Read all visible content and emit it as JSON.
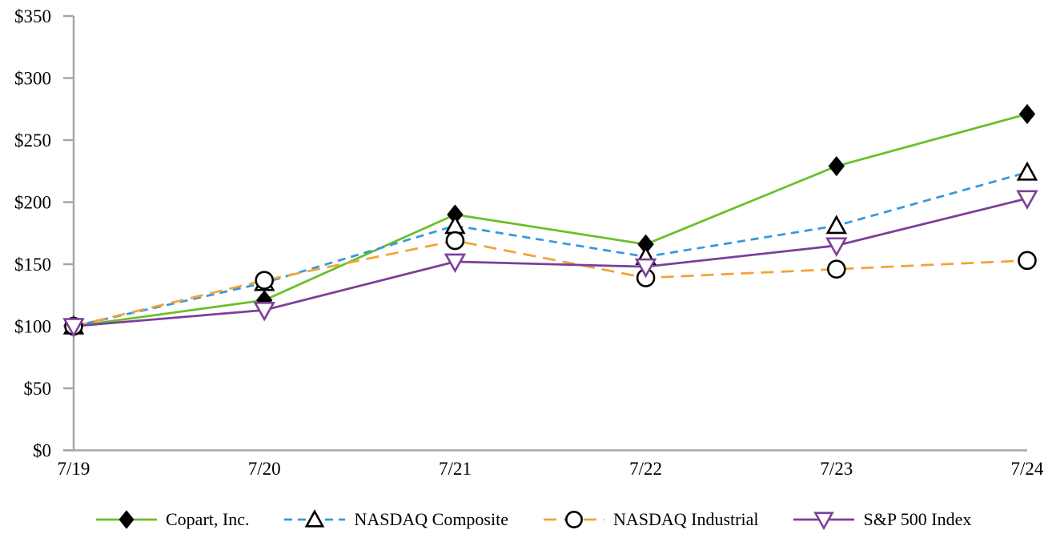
{
  "chart_data": {
    "type": "line",
    "title": "",
    "xlabel": "",
    "ylabel": "",
    "categories": [
      "7/19",
      "7/20",
      "7/21",
      "7/22",
      "7/23",
      "7/24"
    ],
    "y_ticks": [
      "$0",
      "$50",
      "$100",
      "$150",
      "$200",
      "$250",
      "$300",
      "$350"
    ],
    "ylim": [
      0,
      350
    ],
    "y_tick_step": 50,
    "grid": false,
    "legend_position": "bottom",
    "axis_color": "#a6a6a6",
    "text_color": "#000000",
    "series": [
      {
        "name": "Copart, Inc.",
        "values": [
          100,
          121,
          190,
          166,
          229,
          271
        ],
        "color": "#6abf28",
        "line_style": "solid",
        "marker": "diamond",
        "marker_fill": "#000000",
        "marker_stroke": "#000000"
      },
      {
        "name": "NASDAQ Composite",
        "values": [
          100,
          135,
          181,
          156,
          181,
          224
        ],
        "color": "#3399db",
        "line_style": "dashed",
        "marker": "triangle-up",
        "marker_fill": "#ffffff",
        "marker_stroke": "#000000"
      },
      {
        "name": "NASDAQ Industrial",
        "values": [
          100,
          137,
          169,
          139,
          146,
          153
        ],
        "color": "#f2a437",
        "line_style": "long-dash",
        "marker": "circle",
        "marker_fill": "#ffffff",
        "marker_stroke": "#000000"
      },
      {
        "name": "S&P 500 Index",
        "values": [
          100,
          113,
          152,
          148,
          165,
          203
        ],
        "color": "#7c3f99",
        "line_style": "solid",
        "marker": "triangle-down",
        "marker_fill": "#ffffff",
        "marker_stroke": "#7c3f99"
      }
    ]
  }
}
